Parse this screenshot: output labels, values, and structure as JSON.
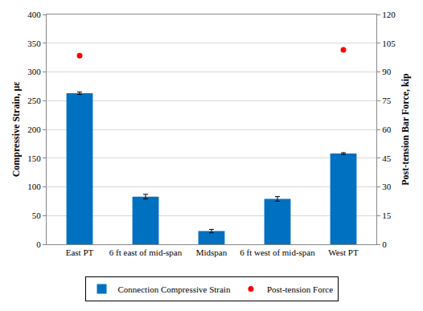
{
  "chart_data": {
    "type": "bar",
    "categories": [
      "East PT",
      "6 ft east of mid-span",
      "Midspan",
      "6 ft west of mid-span",
      "West PT"
    ],
    "y_label": "Compressive Strain, με",
    "y2_label": "Post-tension Bar Force, kip",
    "ylim": [
      0,
      400
    ],
    "yticks": [
      0,
      50,
      100,
      150,
      200,
      250,
      300,
      350,
      400
    ],
    "y2lim": [
      0,
      120
    ],
    "y2ticks": [
      0,
      15,
      30,
      45,
      60,
      75,
      90,
      105,
      120
    ],
    "grid": true,
    "legend": "bottom",
    "series": [
      {
        "name": "Connection Compressive Strain",
        "type": "bar",
        "color": "#0070c0",
        "values": [
          263,
          83,
          23,
          79,
          158
        ],
        "errors": [
          2,
          4,
          3,
          4,
          1.5
        ]
      },
      {
        "name": "Post-tension Force",
        "type": "scatter",
        "axis": "y2",
        "color": "#ff0000",
        "marker": "circle",
        "values": [
          98.5,
          null,
          null,
          null,
          101.5
        ]
      }
    ]
  }
}
